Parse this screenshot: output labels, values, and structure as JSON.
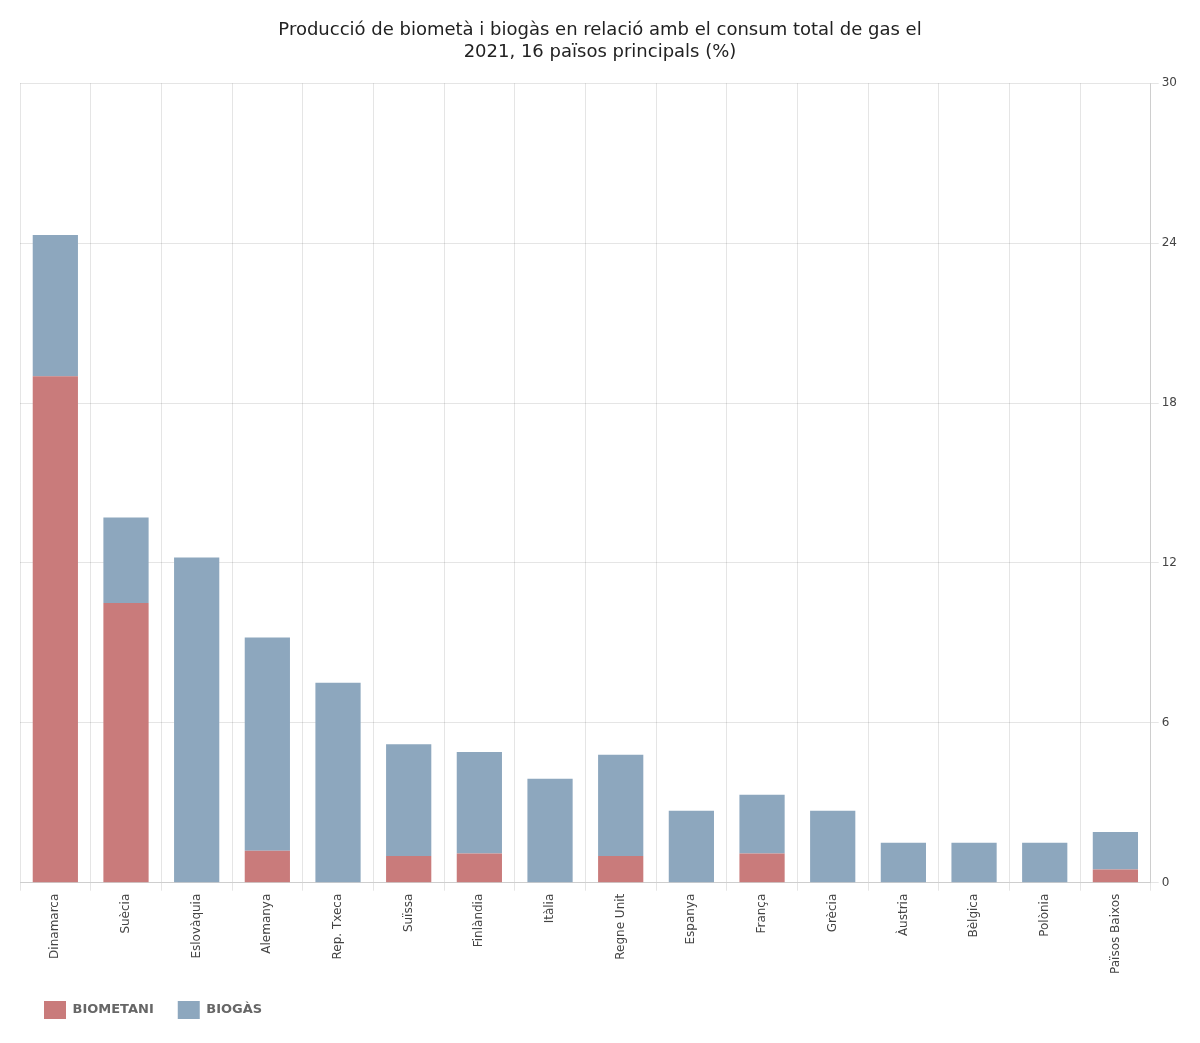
{
  "chart_data": {
    "type": "bar",
    "title": "Producció de biometà i biogàs en relació amb el consum total de gas el\n2021, 16 països principals (%)",
    "categories": [
      "Dinamarca",
      "Suècia",
      "Eslovàquia",
      "Alemanya",
      "Rep. Txeca",
      "Suïssa",
      "Finlàndia",
      "Itàlia",
      "Regne Unit",
      "Espanya",
      "França",
      "Grècia",
      "Àustria",
      "Bèlgica",
      "Polònia",
      "Països Baixos"
    ],
    "series": [
      {
        "name": "BIOMETANI",
        "color": "#c97b7b",
        "values": [
          19.0,
          10.5,
          0.0,
          1.2,
          0.0,
          1.0,
          1.1,
          0.0,
          1.0,
          0.0,
          1.1,
          0.0,
          0.0,
          0.0,
          0.0,
          0.5
        ]
      },
      {
        "name": "BIOGÀS",
        "color": "#8da7be",
        "values": [
          5.3,
          3.2,
          12.2,
          8.0,
          7.5,
          4.2,
          3.8,
          3.9,
          3.8,
          2.7,
          2.2,
          2.7,
          1.5,
          1.5,
          1.5,
          1.4
        ]
      }
    ],
    "stacked": true,
    "ylim": [
      0,
      30
    ],
    "yticks": [
      0,
      6,
      12,
      18,
      24,
      30
    ],
    "grid": true,
    "legend": "bottom left"
  }
}
